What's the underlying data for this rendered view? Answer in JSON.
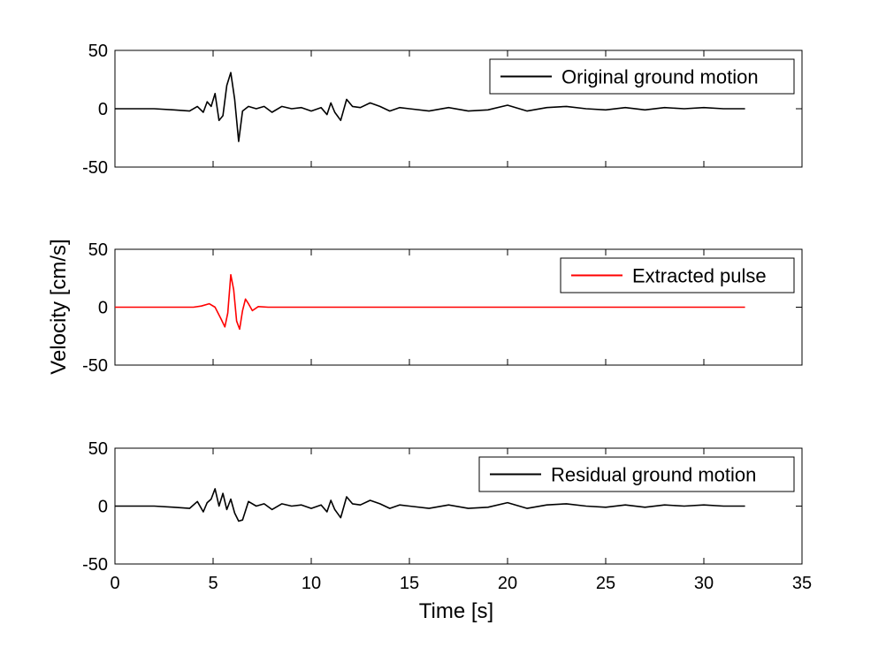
{
  "figure": {
    "ylabel": "Velocity [cm/s]",
    "xlabel": "Time [s]"
  },
  "chart_data": [
    {
      "type": "line",
      "xlim": [
        0,
        35
      ],
      "ylim": [
        -50,
        50
      ],
      "yticks": [
        50,
        0,
        -50
      ],
      "xticks": [],
      "grid": false,
      "legend_position": "top-right",
      "series": [
        {
          "name": "Original ground motion",
          "color": "#000000",
          "x": [
            0,
            1,
            2,
            3,
            3.8,
            4.2,
            4.5,
            4.7,
            4.9,
            5.1,
            5.3,
            5.5,
            5.7,
            5.9,
            6.1,
            6.3,
            6.5,
            6.8,
            7.2,
            7.6,
            8.0,
            8.5,
            9.0,
            9.5,
            10.0,
            10.5,
            10.8,
            11.0,
            11.2,
            11.5,
            11.8,
            12.1,
            12.5,
            13.0,
            13.5,
            14.0,
            14.5,
            15.0,
            16.0,
            17.0,
            18.0,
            19.0,
            20.0,
            21.0,
            22.0,
            23.0,
            24.0,
            25.0,
            26.0,
            27.0,
            28.0,
            29.0,
            30.0,
            31.0,
            32.1
          ],
          "y": [
            0,
            0,
            0,
            -1,
            -2,
            2,
            -3,
            6,
            2,
            13,
            -10,
            -6,
            20,
            31,
            8,
            -28,
            -2,
            2,
            0,
            2,
            -3,
            2,
            0,
            1,
            -2,
            1,
            -5,
            5,
            -3,
            -10,
            8,
            2,
            1,
            5,
            2,
            -2,
            1,
            0,
            -2,
            1,
            -2,
            -1,
            3,
            -2,
            1,
            2,
            0,
            -1,
            1,
            -1,
            1,
            0,
            1,
            0,
            0
          ]
        },
        {
          "name": "Extracted pulse",
          "color": "#ff0000",
          "x": [
            0,
            3.5,
            4.0,
            4.4,
            4.8,
            5.1,
            5.4,
            5.6,
            5.75,
            5.9,
            6.05,
            6.2,
            6.35,
            6.5,
            6.65,
            6.8,
            7.0,
            7.3,
            7.8,
            8.2,
            32.1
          ],
          "y": [
            0,
            0,
            0,
            1,
            3,
            0,
            -10,
            -17,
            -5,
            28,
            15,
            -12,
            -19,
            -3,
            7,
            3,
            -3,
            0.5,
            0,
            0,
            0
          ]
        },
        {
          "name": "Residual ground motion",
          "color": "#000000",
          "x": [
            0,
            1,
            2,
            3,
            3.8,
            4.2,
            4.5,
            4.7,
            4.9,
            5.1,
            5.3,
            5.5,
            5.7,
            5.9,
            6.1,
            6.3,
            6.5,
            6.8,
            7.2,
            7.6,
            8.0,
            8.5,
            9.0,
            9.5,
            10.0,
            10.5,
            10.8,
            11.0,
            11.2,
            11.5,
            11.8,
            12.1,
            12.5,
            13.0,
            13.5,
            14.0,
            14.5,
            15.0,
            16.0,
            17.0,
            18.0,
            19.0,
            20.0,
            21.0,
            22.0,
            23.0,
            24.0,
            25.0,
            26.0,
            27.0,
            28.0,
            29.0,
            30.0,
            31.0,
            32.1
          ],
          "y": [
            0,
            0,
            0,
            -1,
            -2,
            4,
            -5,
            3,
            6,
            15,
            0,
            11,
            -3,
            6,
            -6,
            -13,
            -12,
            4,
            0,
            2,
            -3,
            2,
            0,
            1,
            -2,
            1,
            -5,
            5,
            -3,
            -10,
            8,
            2,
            1,
            5,
            2,
            -2,
            1,
            0,
            -2,
            1,
            -2,
            -1,
            3,
            -2,
            1,
            2,
            0,
            -1,
            1,
            -1,
            1,
            0,
            1,
            0,
            0
          ]
        }
      ]
    },
    {
      "type": "line",
      "xlim": [
        0,
        35
      ],
      "ylim": [
        -50,
        50
      ],
      "yticks": [
        50,
        0,
        -50
      ],
      "xticks": [],
      "series_ref": "Extracted pulse"
    },
    {
      "type": "line",
      "xlim": [
        0,
        35
      ],
      "ylim": [
        -50,
        50
      ],
      "yticks": [
        50,
        0,
        -50
      ],
      "xticks": [
        0,
        5,
        10,
        15,
        20,
        25,
        30,
        35
      ]
    }
  ]
}
